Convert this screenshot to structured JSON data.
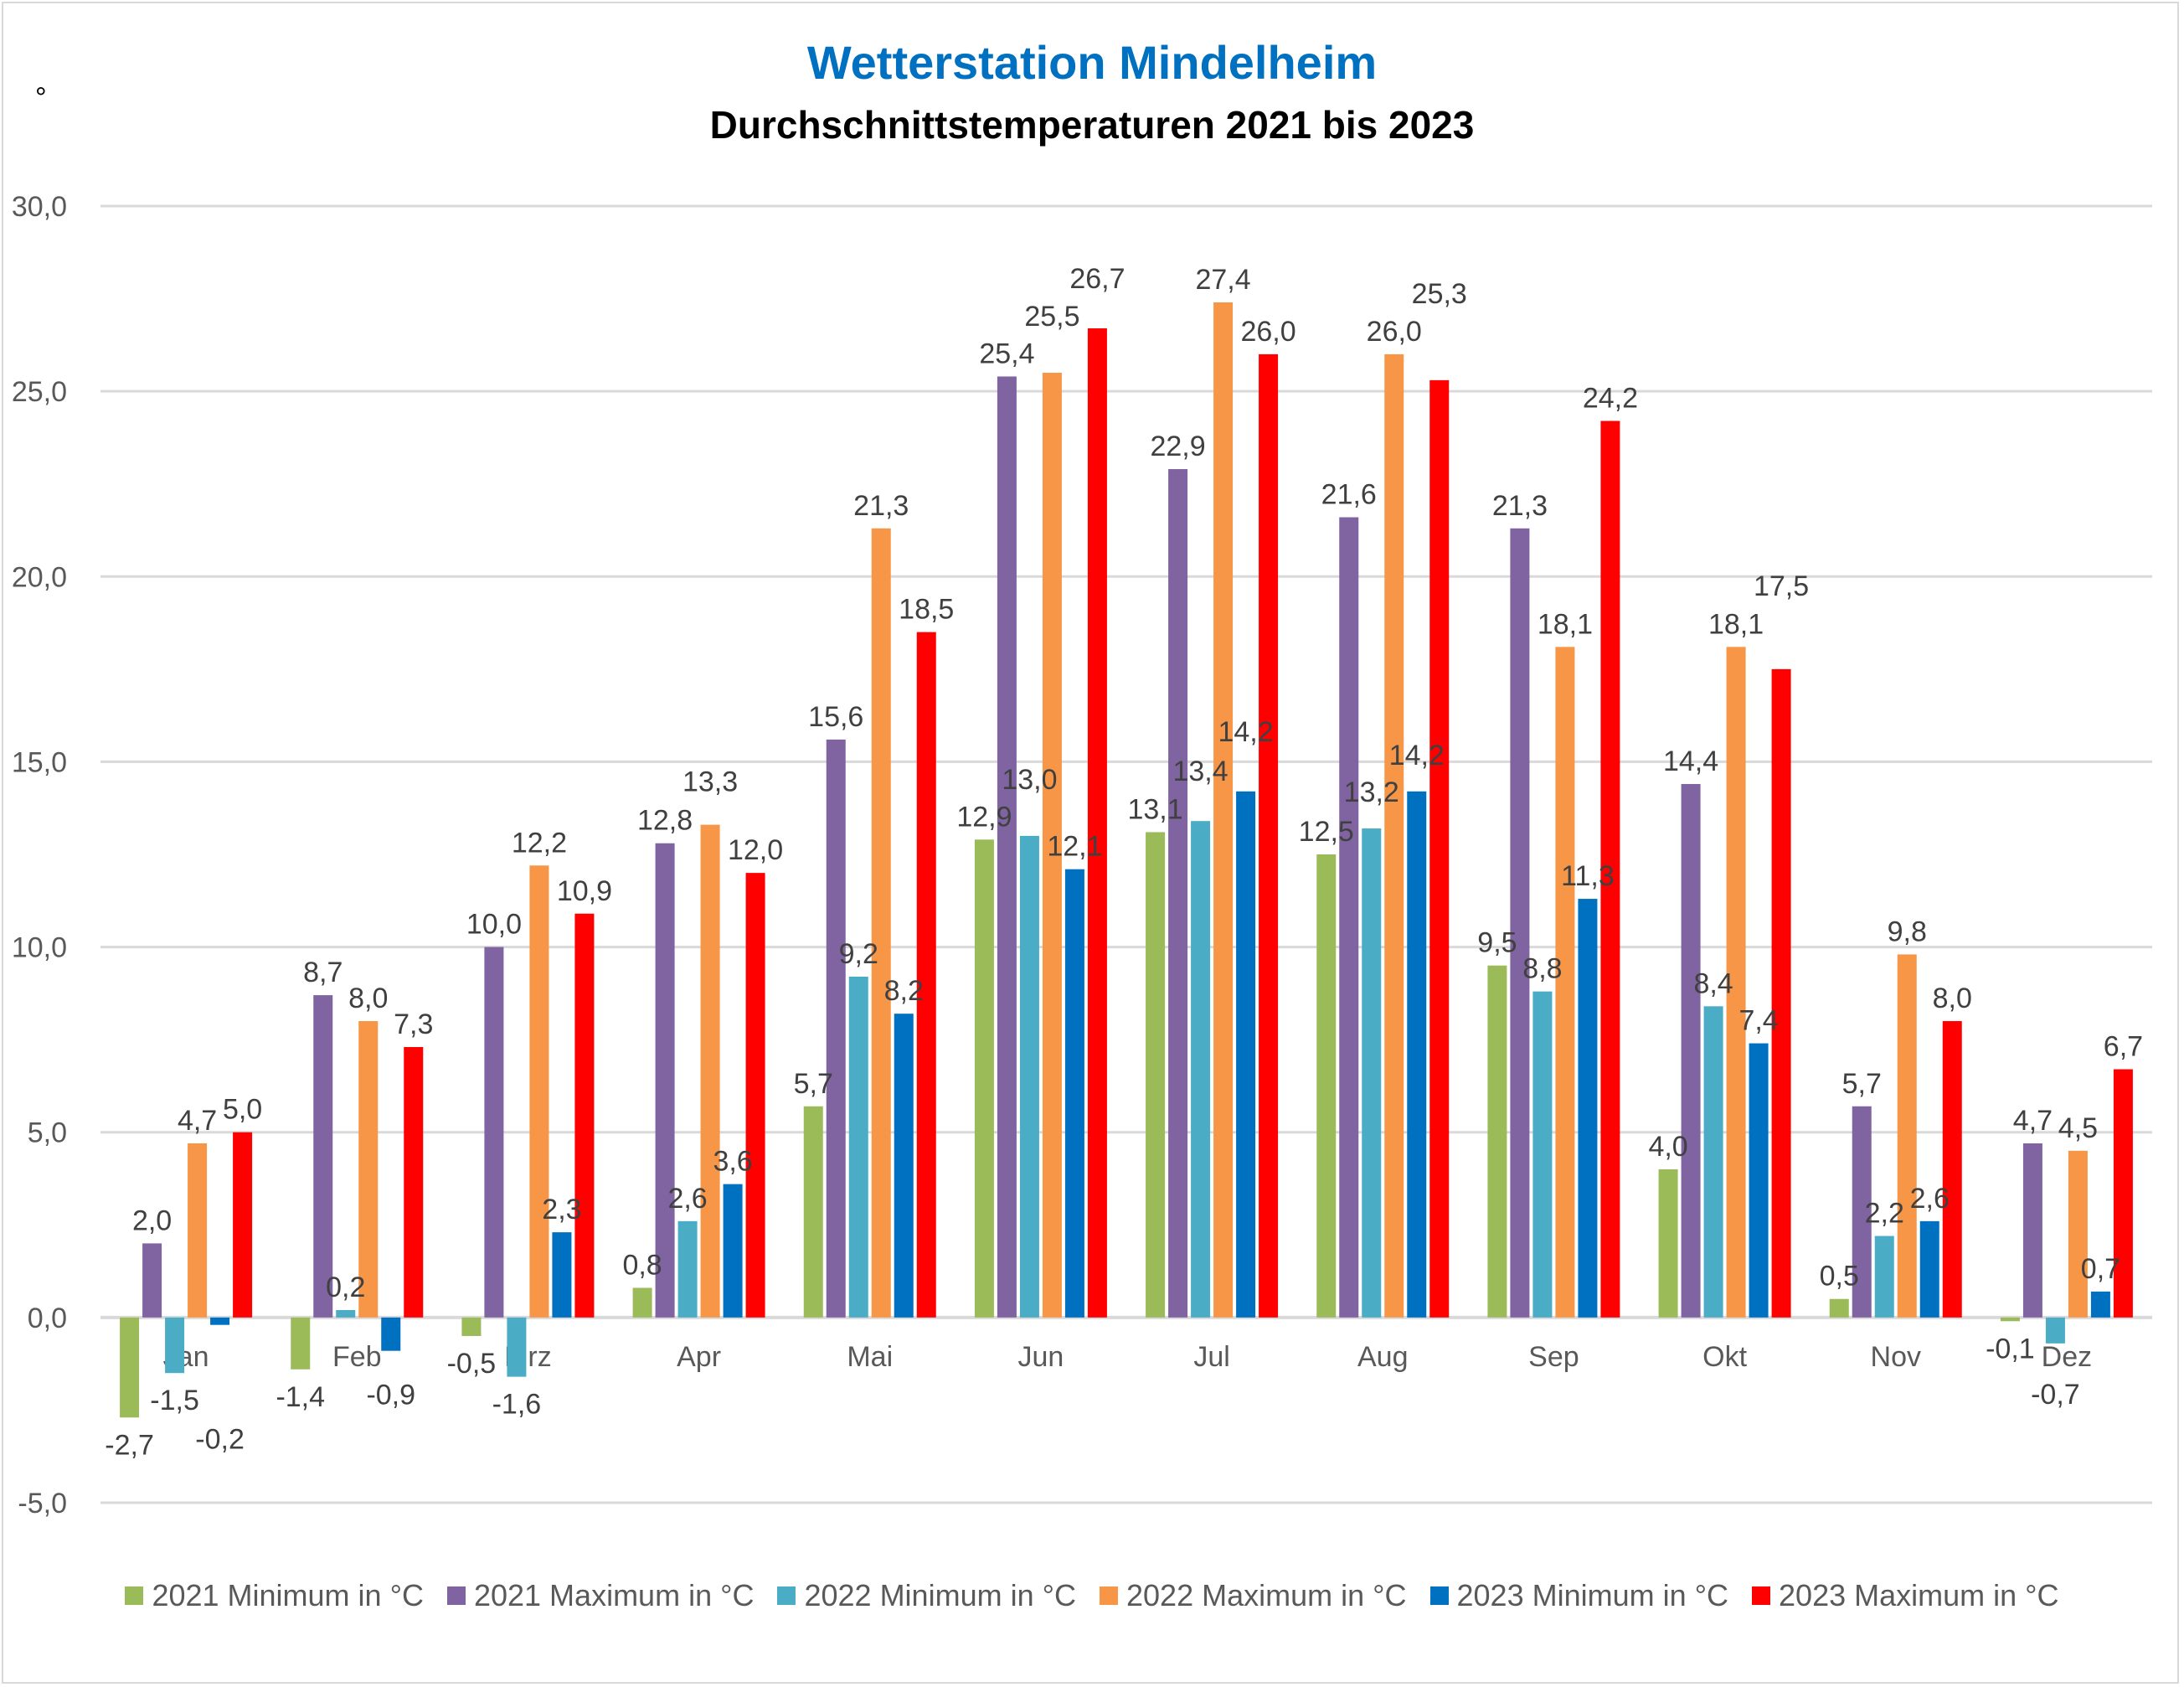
{
  "chart_data": {
    "type": "bar",
    "title": "Wetterstation Mindelheim",
    "subtitle": "Durchschnittstemperaturen 2021 bis 2023",
    "ylabel": "°",
    "xlabel": "",
    "ylim": [
      -5,
      30
    ],
    "yticks": [
      -5,
      0,
      5,
      10,
      15,
      20,
      25,
      30
    ],
    "ytick_labels": [
      "-5,0",
      "0,0",
      "5,0",
      "10,0",
      "15,0",
      "20,0",
      "25,0",
      "30,0"
    ],
    "grid": true,
    "legend_position": "bottom",
    "categories": [
      "Jan",
      "Feb",
      "Mrz",
      "Apr",
      "Mai",
      "Jun",
      "Jul",
      "Aug",
      "Sep",
      "Okt",
      "Nov",
      "Dez"
    ],
    "series": [
      {
        "name": "2021 Minimum in °C",
        "color": "#9BBB59",
        "values": [
          -2.7,
          -1.4,
          -0.5,
          0.8,
          5.7,
          12.9,
          13.1,
          12.5,
          9.5,
          4.0,
          0.5,
          -0.1
        ]
      },
      {
        "name": "2021 Maximum in °C",
        "color": "#8064A2",
        "values": [
          2.0,
          8.7,
          10.0,
          12.8,
          15.6,
          25.4,
          22.9,
          21.6,
          21.3,
          14.4,
          5.7,
          4.7
        ]
      },
      {
        "name": "2022 Minimum in °C",
        "color": "#4BACC6",
        "values": [
          -1.5,
          0.2,
          -1.6,
          2.6,
          9.2,
          13.0,
          13.4,
          13.2,
          8.8,
          8.4,
          2.2,
          -0.7
        ]
      },
      {
        "name": "2022 Maximum in °C",
        "color": "#F79646",
        "values": [
          4.7,
          8.0,
          12.2,
          13.3,
          21.3,
          25.5,
          27.4,
          26.0,
          18.1,
          18.1,
          9.8,
          4.5
        ]
      },
      {
        "name": "2023 Minimum in °C",
        "color": "#0070C0",
        "values": [
          -0.2,
          -0.9,
          2.3,
          3.6,
          8.2,
          12.1,
          14.2,
          14.2,
          11.3,
          7.4,
          2.6,
          0.7
        ]
      },
      {
        "name": "2023 Maximum in °C",
        "color": "#FF0000",
        "values": [
          5.0,
          7.3,
          10.9,
          12.0,
          18.5,
          26.7,
          26.0,
          25.3,
          24.2,
          17.5,
          8.0,
          6.7
        ]
      }
    ]
  }
}
